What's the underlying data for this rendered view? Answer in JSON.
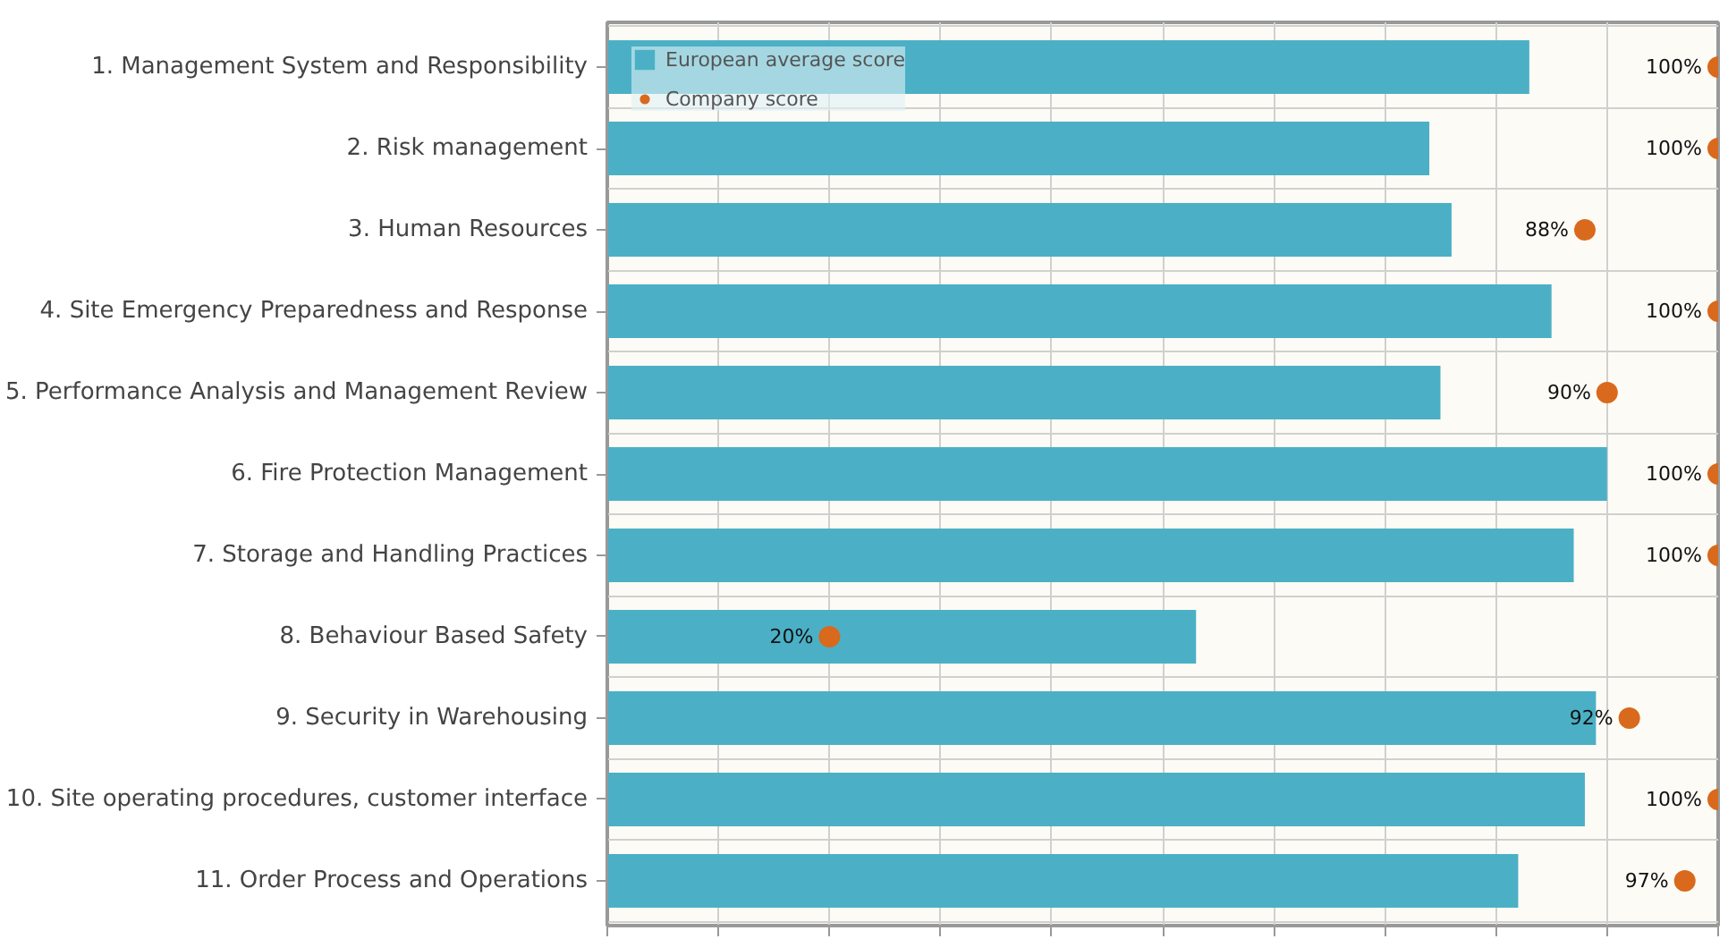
{
  "chart_data": {
    "type": "bar",
    "orientation": "horizontal",
    "categories": [
      "1. Management System and Responsibility",
      "2. Risk management",
      "3. Human Resources",
      "4. Site Emergency Preparedness and Response",
      "5. Performance Analysis and Management Review",
      "6. Fire Protection Management",
      "7. Storage and Handling Practices",
      "8. Behaviour Based Safety",
      "9. Security in Warehousing",
      "10. Site operating procedures, customer interface",
      "11. Order Process and Operations"
    ],
    "series": [
      {
        "name": "European average score",
        "color": "#4bb0c6",
        "values": [
          83,
          74,
          76,
          85,
          75,
          90,
          87,
          53,
          89,
          88,
          82
        ]
      },
      {
        "name": "Company score",
        "type": "scatter",
        "color": "#d9691c",
        "values": [
          100,
          100,
          88,
          100,
          90,
          100,
          100,
          20,
          92,
          100,
          97
        ],
        "value_labels": [
          "100%",
          "100%",
          "88%",
          "100%",
          "90%",
          "100%",
          "100%",
          "20%",
          "92%",
          "100%",
          "97%"
        ]
      }
    ],
    "xlim": [
      0,
      100
    ],
    "xticks": [
      {
        "value": 0,
        "label": null
      },
      {
        "value": 10,
        "label": null
      },
      {
        "value": 20,
        "label": null
      },
      {
        "value": 30,
        "label": null
      },
      {
        "value": 40,
        "label": null
      },
      {
        "value": 50,
        "label": null
      },
      {
        "value": 60,
        "label": null
      },
      {
        "value": 70,
        "label": null
      },
      {
        "value": 80,
        "label": null
      },
      {
        "value": 90,
        "label": null
      },
      {
        "value": 100,
        "label": null
      }
    ],
    "tick_labels": "y",
    "grid": true,
    "legend": "top left",
    "marker": "circle"
  }
}
